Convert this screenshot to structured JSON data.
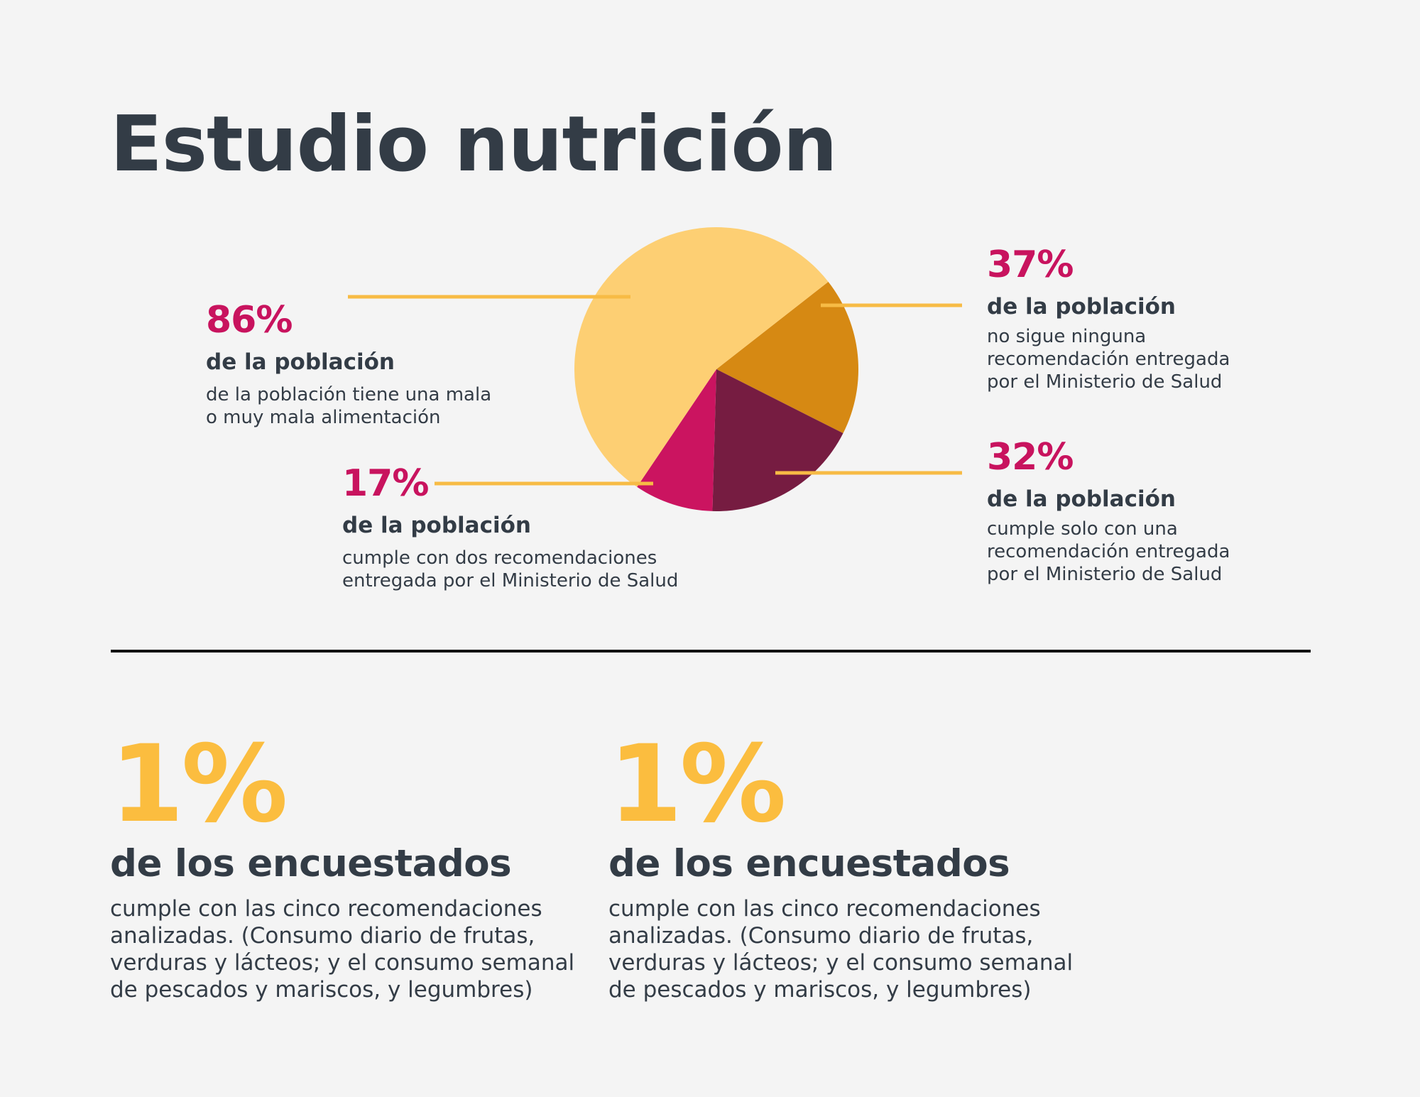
{
  "title": "Estudio nutrición",
  "colors": {
    "accent_pink": "#c8135e",
    "accent_yellow": "#fbbd3f",
    "leader_line": "#f7bb45",
    "text_dark": "#333c46"
  },
  "chart_data": {
    "type": "pie",
    "title": "",
    "slices": [
      {
        "label": "86%",
        "value": 55,
        "color": "#fdcf73"
      },
      {
        "label": "37%",
        "value": 18,
        "color": "#d68913"
      },
      {
        "label": "32%",
        "value": 18,
        "color": "#761c41"
      },
      {
        "label": "17%",
        "value": 9,
        "color": "#cb1460"
      }
    ]
  },
  "callouts": [
    {
      "pct": "86%",
      "sub": "de la población",
      "desc": "de la población tiene una mala\no muy mala alimentación"
    },
    {
      "pct": "37%",
      "sub": "de la población",
      "desc": "no sigue ninguna\nrecomendación entregada\npor el Ministerio de Salud"
    },
    {
      "pct": "17%",
      "sub": "de la población",
      "desc": "cumple con dos recomendaciones\nentregada por el Ministerio de Salud"
    },
    {
      "pct": "32%",
      "sub": "de la población",
      "desc": "cumple solo con una\nrecomendación entregada\npor el Ministerio de Salud"
    }
  ],
  "highlights": [
    {
      "pct": "1%",
      "sub": "de los encuestados",
      "desc": "cumple con las cinco recomendaciones\nanalizadas. (Consumo diario de frutas,\nverduras y lácteos; y el consumo semanal\nde pescados y mariscos, y legumbres)"
    },
    {
      "pct": "1%",
      "sub": "de los encuestados",
      "desc": "cumple con las cinco recomendaciones\nanalizadas. (Consumo diario de frutas,\nverduras y lácteos; y el consumo semanal\nde pescados y mariscos, y legumbres)"
    }
  ]
}
